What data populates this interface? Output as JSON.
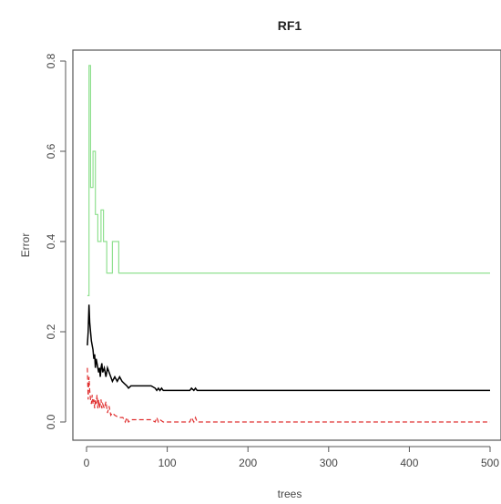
{
  "chart_data": {
    "type": "line",
    "title": "RF1",
    "xlabel": "trees",
    "ylabel": "Error",
    "xlim": [
      0,
      500
    ],
    "ylim": [
      0,
      0.8
    ],
    "xticks": [
      "0",
      "100",
      "200",
      "300",
      "400",
      "500"
    ],
    "yticks": [
      "0.0",
      "0.2",
      "0.4",
      "0.6",
      "0.8"
    ],
    "grid": false,
    "series": [
      {
        "color": "#90e090",
        "dash": "",
        "x": [
          1,
          3,
          3,
          5,
          5,
          8,
          8,
          11,
          11,
          14,
          14,
          18,
          18,
          21,
          21,
          25,
          25,
          32,
          32,
          40,
          40,
          44,
          44,
          500
        ],
        "y": [
          0.28,
          0.28,
          0.79,
          0.79,
          0.52,
          0.52,
          0.6,
          0.6,
          0.46,
          0.46,
          0.4,
          0.4,
          0.47,
          0.47,
          0.4,
          0.4,
          0.33,
          0.33,
          0.4,
          0.4,
          0.33,
          0.33,
          0.33,
          0.33
        ]
      },
      {
        "color": "#000000",
        "dash": "",
        "x": [
          1,
          2,
          3,
          4,
          5,
          6,
          7,
          8,
          9,
          10,
          11,
          12,
          13,
          14,
          15,
          16,
          17,
          18,
          19,
          20,
          22,
          24,
          26,
          28,
          30,
          32,
          35,
          38,
          41,
          44,
          47,
          50,
          52,
          55,
          60,
          70,
          80,
          85,
          87,
          89,
          91,
          93,
          95,
          100,
          120,
          128,
          130,
          133,
          135,
          137,
          140,
          150,
          200,
          300,
          400,
          500
        ],
        "y": [
          0.17,
          0.2,
          0.26,
          0.22,
          0.2,
          0.18,
          0.17,
          0.16,
          0.14,
          0.15,
          0.12,
          0.14,
          0.13,
          0.12,
          0.11,
          0.12,
          0.1,
          0.12,
          0.13,
          0.11,
          0.12,
          0.1,
          0.12,
          0.11,
          0.1,
          0.09,
          0.1,
          0.09,
          0.1,
          0.09,
          0.085,
          0.08,
          0.075,
          0.08,
          0.08,
          0.08,
          0.08,
          0.075,
          0.07,
          0.075,
          0.07,
          0.075,
          0.07,
          0.07,
          0.07,
          0.07,
          0.075,
          0.07,
          0.075,
          0.07,
          0.07,
          0.07,
          0.07,
          0.07,
          0.07,
          0.07
        ]
      },
      {
        "color": "#e03030",
        "dash": "5,3",
        "x": [
          1,
          2,
          3,
          4,
          5,
          6,
          7,
          8,
          9,
          10,
          11,
          12,
          13,
          14,
          15,
          16,
          17,
          18,
          19,
          20,
          22,
          24,
          26,
          28,
          30,
          32,
          35,
          40,
          45,
          48,
          50,
          52,
          55,
          60,
          70,
          80,
          85,
          87,
          89,
          91,
          95,
          100,
          120,
          128,
          130,
          133,
          135,
          137,
          140,
          150,
          200,
          300,
          400,
          500
        ],
        "y": [
          0.12,
          0.05,
          0.1,
          0.07,
          0.05,
          0.04,
          0.06,
          0.04,
          0.05,
          0.03,
          0.05,
          0.04,
          0.06,
          0.03,
          0.05,
          0.03,
          0.04,
          0.05,
          0.03,
          0.04,
          0.03,
          0.045,
          0.02,
          0.035,
          0.015,
          0.02,
          0.015,
          0.01,
          0.01,
          0.0,
          0.01,
          0.0,
          0.005,
          0.005,
          0.005,
          0.005,
          0.0,
          0.01,
          0.0,
          0.005,
          0.0,
          0.0,
          0.0,
          0.0,
          0.01,
          0.0,
          0.01,
          0.0,
          0.0,
          0.0,
          0.0,
          0.0,
          0.0,
          0.0
        ]
      }
    ]
  }
}
